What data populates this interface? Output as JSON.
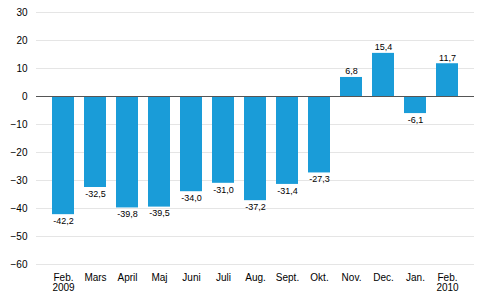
{
  "chart_data": {
    "type": "bar",
    "categories": [
      "Feb.\n2009",
      "Mars",
      "April",
      "Maj",
      "Juni",
      "Juli",
      "Aug.",
      "Sept.",
      "Okt.",
      "Nov.",
      "Dec.",
      "Jan.",
      "Feb.\n2010"
    ],
    "values": [
      -42.2,
      -32.5,
      -39.8,
      -39.5,
      -34.0,
      -31.0,
      -37.2,
      -31.4,
      -27.3,
      6.8,
      15.4,
      -6.1,
      11.7
    ],
    "value_labels": [
      "-42,2",
      "-32,5",
      "-39,8",
      "-39,5",
      "-34,0",
      "-31,0",
      "-37,2",
      "-31,4",
      "-27,3",
      "6,8",
      "15,4",
      "-6,1",
      "11,7"
    ],
    "color": "#1a9cd8",
    "ylim": [
      -60,
      30
    ],
    "yticks": [
      -60,
      -50,
      -40,
      -30,
      -20,
      -10,
      0,
      10,
      20,
      30
    ],
    "grid": true,
    "data_labels": true
  }
}
